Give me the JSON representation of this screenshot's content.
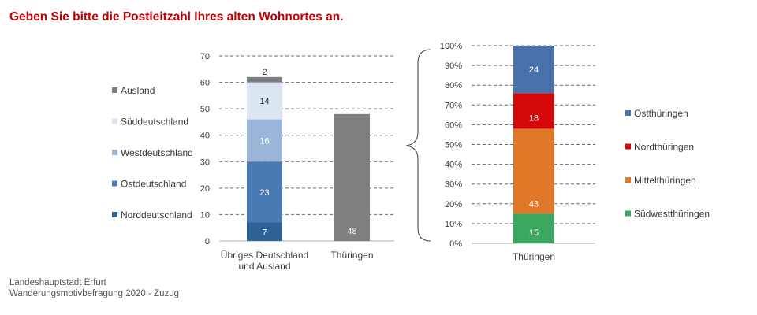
{
  "title": "Geben Sie bitte die Postleitzahl Ihres alten Wohnortes an.",
  "footer": {
    "line1": "Landeshauptstadt Erfurt",
    "line2": "Wanderungsmotivbefragung 2020 - Zuzug"
  },
  "chart_data": [
    {
      "type": "bar",
      "stacked": true,
      "categories": [
        "Übriges Deutschland\nund Ausland",
        "Thüringen"
      ],
      "ylim": [
        0,
        70
      ],
      "yticks": [
        0,
        10,
        20,
        30,
        40,
        50,
        60,
        70
      ],
      "grid": true,
      "legend_position": "left",
      "series": [
        {
          "name": "Norddeutschland",
          "color": "#2e6196",
          "values": [
            7,
            0
          ],
          "labels": [
            "7",
            ""
          ]
        },
        {
          "name": "Ostdeutschland",
          "color": "#4a7ab3",
          "values": [
            23,
            0
          ],
          "labels": [
            "23",
            ""
          ]
        },
        {
          "name": "Westdeutschland",
          "color": "#9bb5d9",
          "values": [
            16,
            0
          ],
          "labels": [
            "16",
            ""
          ]
        },
        {
          "name": "Süddeutschland",
          "color": "#dce6f2",
          "values": [
            14,
            0
          ],
          "labels": [
            "14",
            ""
          ]
        },
        {
          "name": "Ausland",
          "color": "#7f7f7f",
          "values": [
            2,
            0
          ],
          "labels": [
            "2",
            ""
          ]
        },
        {
          "name": "",
          "color": "#7f7f7f",
          "values": [
            0,
            48
          ],
          "labels": [
            "",
            "48"
          ]
        }
      ],
      "legend_order": [
        "Ausland",
        "Süddeutschland",
        "Westdeutschland",
        "Ostdeutschland",
        "Norddeutschland"
      ]
    },
    {
      "type": "bar",
      "stacked": true,
      "percent": true,
      "categories": [
        "Thüringen"
      ],
      "ylim": [
        0,
        100
      ],
      "yticks": [
        "0%",
        "10%",
        "20%",
        "30%",
        "40%",
        "50%",
        "60%",
        "70%",
        "80%",
        "90%",
        "100%"
      ],
      "grid": true,
      "legend_position": "right",
      "series": [
        {
          "name": "Südwestthüringen",
          "color": "#3aa860",
          "values": [
            15
          ],
          "labels": [
            "15"
          ]
        },
        {
          "name": "Mittelthüringen",
          "color": "#e07727",
          "values": [
            43
          ],
          "labels": [
            "43"
          ]
        },
        {
          "name": "Nordthüringen",
          "color": "#d40808",
          "values": [
            18
          ],
          "labels": [
            "18"
          ]
        },
        {
          "name": "Ostthüringen",
          "color": "#4a72aa",
          "values": [
            24
          ],
          "labels": [
            "24"
          ]
        }
      ],
      "legend_order": [
        "Ostthüringen",
        "Nordthüringen",
        "Mittelthüringen",
        "Südwestthüringen"
      ]
    }
  ]
}
